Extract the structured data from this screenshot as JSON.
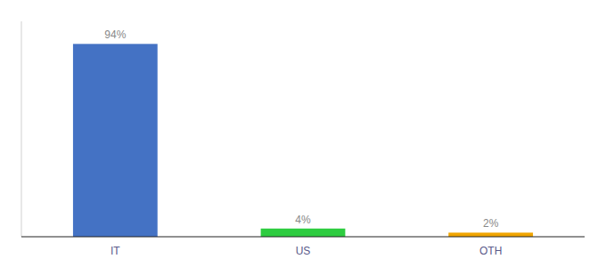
{
  "chart_data": {
    "type": "bar",
    "categories": [
      "IT",
      "US",
      "OTH"
    ],
    "values": [
      94,
      4,
      2
    ],
    "value_labels": [
      "94%",
      "4%",
      "2%"
    ],
    "colors": [
      "#4472c4",
      "#2ecc40",
      "#f0a500"
    ],
    "ylim": [
      0,
      105
    ],
    "data_labels": true,
    "tick_labels": "x",
    "grid": false
  }
}
